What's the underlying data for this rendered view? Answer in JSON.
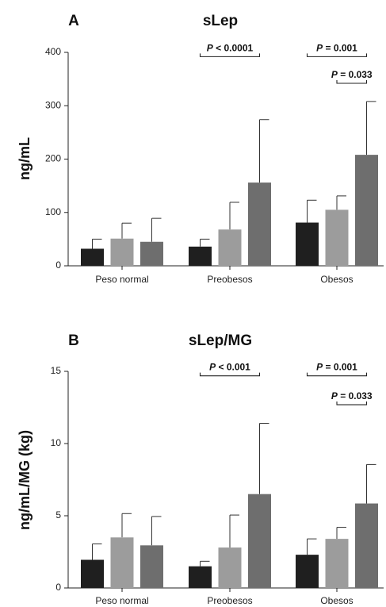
{
  "colors": [
    "#1f1f1f",
    "#9c9c9c",
    "#6e6e6e"
  ],
  "chart_data": [
    {
      "type": "bar",
      "panel": "A",
      "title": "sLep",
      "ylabel": "ng/mL",
      "xlabel": "",
      "categories": [
        "Peso normal",
        "Preobesos",
        "Obesos"
      ],
      "ylim": [
        0,
        400
      ],
      "yticks": [
        "0",
        "100",
        "200",
        "300",
        "400"
      ],
      "series": [
        {
          "values": [
            32,
            36,
            81
          ],
          "errors": [
            50,
            50,
            123
          ]
        },
        {
          "values": [
            51,
            68,
            105
          ],
          "errors": [
            80,
            119,
            131
          ]
        },
        {
          "values": [
            45,
            156,
            208
          ],
          "errors": [
            89,
            274,
            308
          ]
        }
      ],
      "annotations": [
        {
          "text_prefix": "P",
          "text_rest": " < 0.0001",
          "category": 1,
          "from": 0,
          "to": 2,
          "y": 395
        },
        {
          "text_prefix": "P",
          "text_rest": " = 0.001",
          "category": 2,
          "from": 0,
          "to": 2,
          "y": 395
        },
        {
          "text_prefix": "P",
          "text_rest": " = 0.033",
          "category": 2,
          "from": 1,
          "to": 2,
          "y": 345
        }
      ]
    },
    {
      "type": "bar",
      "panel": "B",
      "title": "sLep/MG",
      "ylabel": "ng/mL/MG (kg)",
      "xlabel": "",
      "categories": [
        "Peso normal",
        "Preobesos",
        "Obesos"
      ],
      "ylim": [
        0,
        15
      ],
      "yticks": [
        "0",
        "5",
        "10",
        "15"
      ],
      "series": [
        {
          "values": [
            1.95,
            1.5,
            2.3
          ],
          "errors": [
            3.05,
            1.85,
            3.4
          ]
        },
        {
          "values": [
            3.5,
            2.8,
            3.4
          ],
          "errors": [
            5.15,
            5.05,
            4.2
          ]
        },
        {
          "values": [
            2.95,
            6.5,
            5.85
          ],
          "errors": [
            4.95,
            11.4,
            8.55
          ]
        }
      ],
      "annotations": [
        {
          "text_prefix": "P",
          "text_rest": " < 0.001",
          "category": 1,
          "from": 0,
          "to": 2,
          "y": 14.8
        },
        {
          "text_prefix": "P",
          "text_rest": " = 0.001",
          "category": 2,
          "from": 0,
          "to": 2,
          "y": 14.8
        },
        {
          "text_prefix": "P",
          "text_rest": " = 0.033",
          "category": 2,
          "from": 1,
          "to": 2,
          "y": 12.8
        }
      ]
    }
  ]
}
